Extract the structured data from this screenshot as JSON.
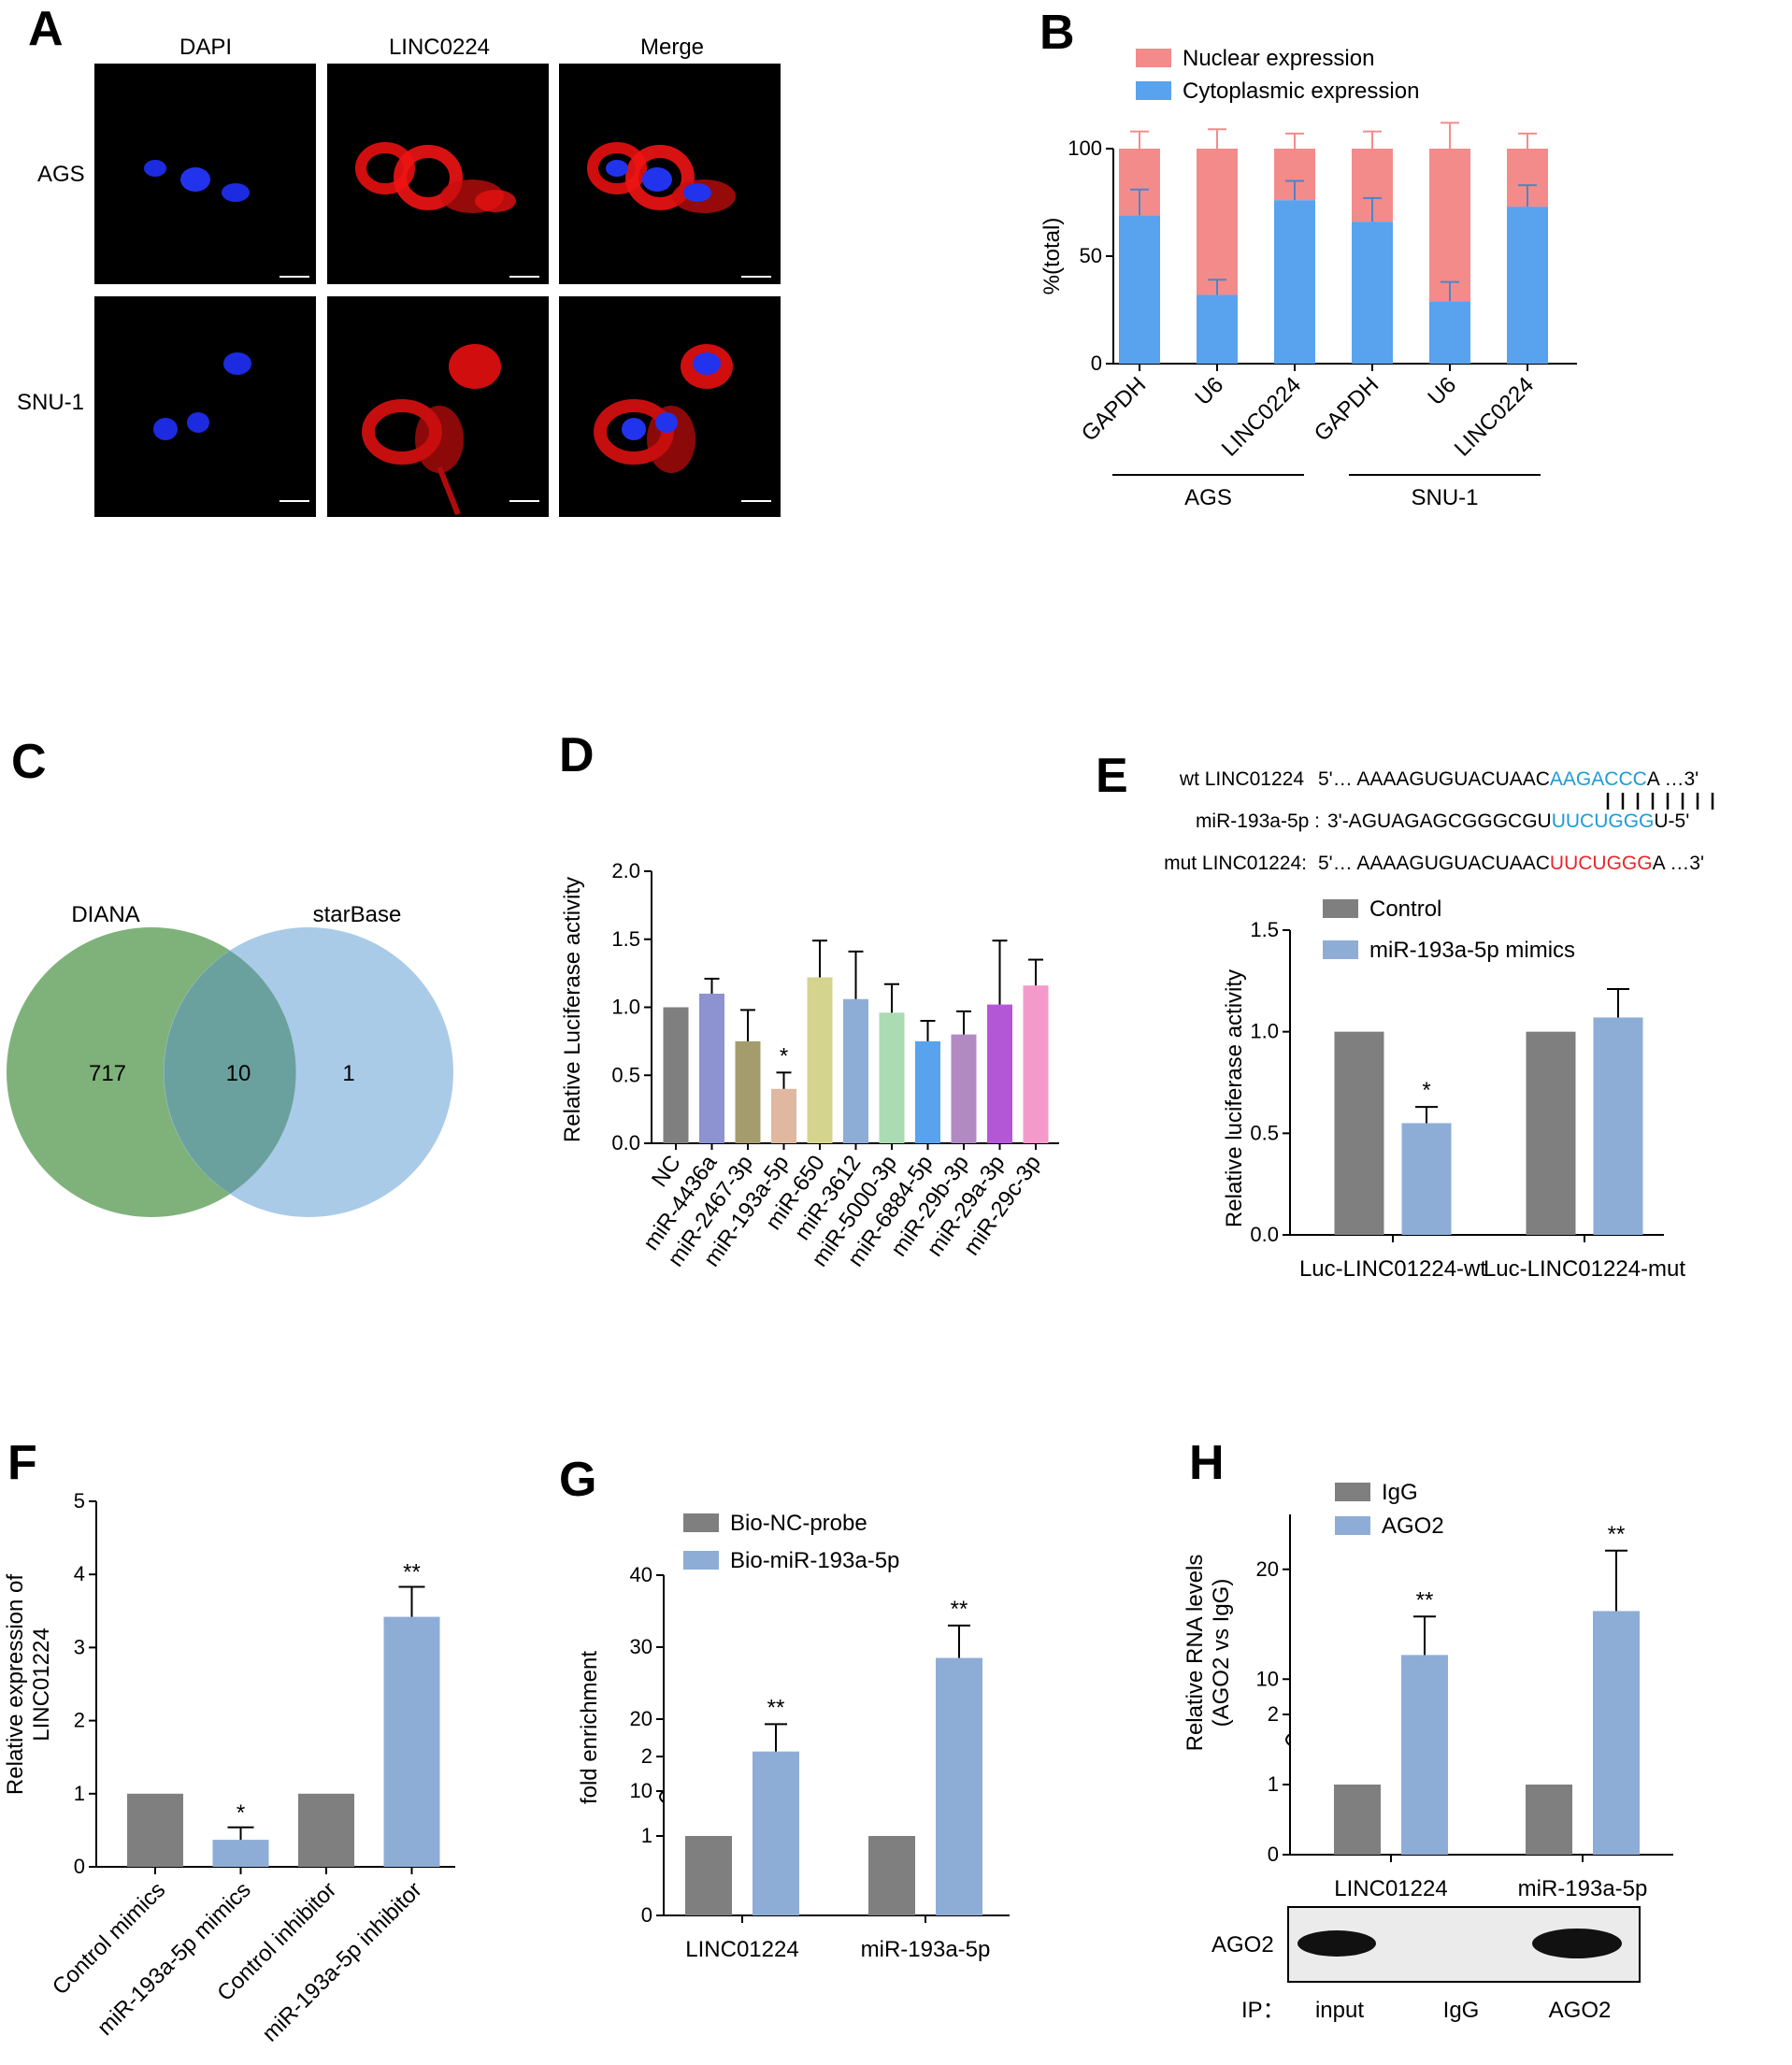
{
  "panels": {
    "A": {
      "label": "A",
      "columns": [
        "DAPI",
        "LINC0224",
        "Merge"
      ],
      "rows": [
        "AGS",
        "SNU-1"
      ]
    },
    "B": {
      "label": "B"
    },
    "C": {
      "label": "C"
    },
    "D": {
      "label": "D"
    },
    "E": {
      "label": "E"
    },
    "F": {
      "label": "F"
    },
    "G": {
      "label": "G"
    },
    "H": {
      "label": "H"
    }
  },
  "venn": {
    "left_name": "DIANA",
    "right_name": "starBase",
    "left_only": "717",
    "overlap": "10",
    "right_only": "1",
    "left_color": "#7fb27a",
    "right_color": "#a9cbe8",
    "overlap_color": "#6aa19e",
    "left_name_color": "#2e7d32",
    "right_name_color": "#5b9bd5"
  },
  "sequences": {
    "wt_label": "wt LINC01224",
    "wt_prefix": "5'… AAAAGUGUACUAAC",
    "wt_site": "AAGACCC",
    "wt_suffix": "A …3'",
    "mir_label": "miR-193a-5p :",
    "mir_prefix": "3'-AGUAGAGCGGGCGU",
    "mir_site": "UUCUGGG",
    "mir_suffix": "U-5'",
    "mut_label": "mut LINC01224:",
    "mut_prefix": "5'… AAAAGUGUACUAAC",
    "mut_site": "UUCUGGG",
    "mut_suffix": "A …3'",
    "site_color": "#1f9bd7",
    "mut_color": "#e8282b"
  },
  "western": {
    "band_label": "AGO2",
    "ip_label": "IP：",
    "lanes": [
      "input",
      "IgG",
      "AGO2"
    ],
    "band_present": [
      true,
      false,
      true
    ]
  },
  "colors": {
    "gray": "#7f7f7f",
    "blue": "#8eadd6",
    "nuclear": "#f48b8b",
    "cytoplasmic": "#58a2ee"
  },
  "chart_data": [
    {
      "panel": "B",
      "type": "bar",
      "stacked": true,
      "categories": [
        "GAPDH",
        "U6",
        "LINC0224",
        "GAPDH",
        "U6",
        "LINC0224"
      ],
      "groups": [
        {
          "name": "AGS",
          "categories": [
            0,
            1,
            2
          ]
        },
        {
          "name": "SNU-1",
          "categories": [
            3,
            4,
            5
          ]
        }
      ],
      "series": [
        {
          "name": "Cytoplasmic expression",
          "values": [
            69,
            32,
            76,
            66,
            29,
            73
          ],
          "errors": [
            12,
            7,
            9,
            11,
            9,
            10
          ],
          "color": "#58a2ee"
        },
        {
          "name": "Nuclear expression",
          "values": [
            31,
            68,
            24,
            34,
            71,
            27
          ],
          "errors": [
            8,
            9,
            7,
            8,
            12,
            7
          ],
          "color": "#f48b8b"
        }
      ],
      "ylabel": "%(total)",
      "ylim": [
        0,
        100
      ],
      "yticks": [
        "0",
        "50",
        "100"
      ],
      "legend": "top-left"
    },
    {
      "panel": "D",
      "type": "bar",
      "categories": [
        "NC",
        "miR-4436a",
        "miR-2467-3p",
        "miR-193a-5p",
        "miR-650",
        "miR-3612",
        "miR-5000-3p",
        "miR-6884-5p",
        "miR-29b-3p",
        "miR-29a-3p",
        "miR-29c-3p"
      ],
      "values": [
        1.0,
        1.1,
        0.75,
        0.4,
        1.22,
        1.06,
        0.96,
        0.75,
        0.8,
        1.02,
        1.16
      ],
      "errors": [
        0,
        0.11,
        0.23,
        0.12,
        0.27,
        0.35,
        0.21,
        0.15,
        0.17,
        0.47,
        0.19
      ],
      "colors": [
        "#7f7f7f",
        "#8d92d0",
        "#a49c6c",
        "#e0b8a0",
        "#d5d48e",
        "#8eadd6",
        "#aadbb2",
        "#58a2ee",
        "#b18ac2",
        "#b457d6",
        "#f49acb"
      ],
      "highlight": "miR-193a-5p",
      "highlight_color": "#e8282b",
      "annotations": [
        {
          "category": "miR-193a-5p",
          "text": "*"
        }
      ],
      "ylabel": "Relative Luciferase activity",
      "ylim": [
        0,
        2
      ],
      "yticks": [
        "0.0",
        "0.5",
        "1.0",
        "1.5",
        "2.0"
      ]
    },
    {
      "panel": "E",
      "type": "bar",
      "categories": [
        "Luc-LINC01224-wt",
        "Luc-LINC01224-mut"
      ],
      "series": [
        {
          "name": "Control",
          "values": [
            1.0,
            1.0
          ],
          "errors": [
            0,
            0
          ]
        },
        {
          "name": "miR-193a-5p mimics",
          "values": [
            0.55,
            1.07
          ],
          "errors": [
            0.08,
            0.14
          ]
        }
      ],
      "annotations": [
        {
          "category": "Luc-LINC01224-wt",
          "series": "miR-193a-5p mimics",
          "text": "*"
        }
      ],
      "ylabel": "Relative luciferase activity",
      "ylim": [
        0,
        1.5
      ],
      "yticks": [
        "0.0",
        "0.5",
        "1.0",
        "1.5"
      ],
      "legend": "top-left"
    },
    {
      "panel": "F",
      "type": "bar",
      "categories": [
        "Control mimics",
        "miR-193a-5p mimics",
        "Control inhibitor",
        "miR-193a-5p inhibitor"
      ],
      "values": [
        1.0,
        0.37,
        1.0,
        3.42
      ],
      "errors": [
        0,
        0.17,
        0,
        0.41
      ],
      "colors": [
        "#7f7f7f",
        "#8eadd6",
        "#7f7f7f",
        "#8eadd6"
      ],
      "annotations": [
        {
          "category": "miR-193a-5p mimics",
          "text": "*"
        },
        {
          "category": "miR-193a-5p inhibitor",
          "text": "**"
        }
      ],
      "ylabel": "Relative expression of LINC01224",
      "ylabel_lines": [
        "Relative expression of",
        "LINC01224"
      ],
      "ylim": [
        0,
        5
      ],
      "yticks": [
        "0",
        "1",
        "2",
        "3",
        "4",
        "5"
      ]
    },
    {
      "panel": "G",
      "type": "bar",
      "categories": [
        "LINC01224",
        "miR-193a-5p"
      ],
      "series": [
        {
          "name": "Bio-NC-probe",
          "values": [
            1.0,
            1.0
          ],
          "errors": [
            0,
            0
          ]
        },
        {
          "name": "Bio-miR-193a-5p",
          "values": [
            15.5,
            28.5
          ],
          "errors": [
            3.8,
            4.5
          ]
        }
      ],
      "annotations": [
        {
          "category": "LINC01224",
          "series": "Bio-miR-193a-5p",
          "text": "**"
        },
        {
          "category": "miR-193a-5p",
          "series": "Bio-miR-193a-5p",
          "text": "**"
        }
      ],
      "ylabel": "fold enrichment",
      "axis_break": {
        "lower": [
          0,
          2
        ],
        "upper": [
          10,
          40
        ]
      },
      "yticks_lower": [
        "0",
        "1",
        "2"
      ],
      "yticks_upper": [
        "10",
        "20",
        "30",
        "40"
      ],
      "legend": "top-left"
    },
    {
      "panel": "H",
      "type": "bar",
      "categories": [
        "LINC01224",
        "miR-193a-5p"
      ],
      "series": [
        {
          "name": "IgG",
          "values": [
            1.0,
            1.0
          ],
          "errors": [
            0,
            0
          ]
        },
        {
          "name": "AGO2",
          "values": [
            12.2,
            16.2
          ],
          "errors": [
            3.5,
            5.5
          ]
        }
      ],
      "annotations": [
        {
          "category": "LINC01224",
          "series": "AGO2",
          "text": "**"
        },
        {
          "category": "miR-193a-5p",
          "series": "AGO2",
          "text": "**"
        }
      ],
      "ylabel": "Relative RNA levels (AGO2 vs IgG)",
      "ylabel_lines": [
        "Relative RNA levels",
        "(AGO2 vs IgG)"
      ],
      "axis_break": {
        "lower": [
          0,
          2
        ],
        "upper": [
          5,
          25
        ]
      },
      "yticks_lower": [
        "0",
        "1",
        "2"
      ],
      "yticks_upper": [
        "10",
        "20"
      ],
      "legend": "top-left"
    }
  ]
}
